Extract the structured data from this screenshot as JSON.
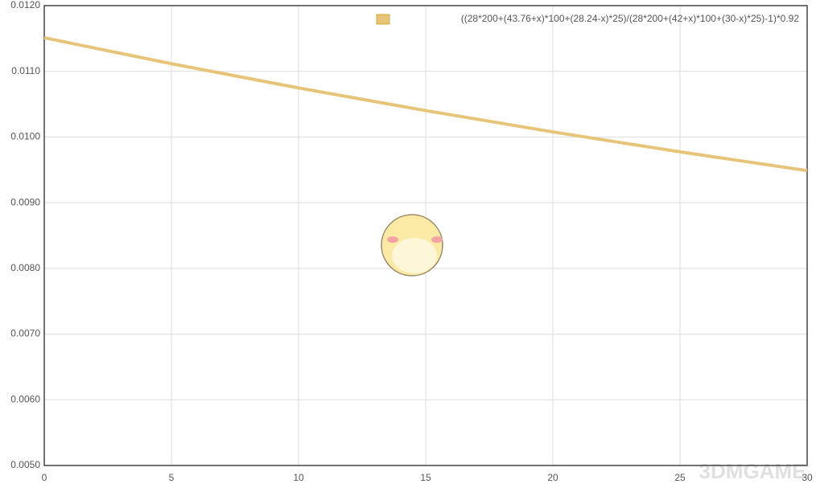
{
  "chart_data": {
    "type": "line",
    "x": [
      0,
      5,
      10,
      15,
      20,
      25,
      30
    ],
    "series": [
      {
        "name": "((28*200+(43.76+x)*100+(28.24-x)*25)/(28*200+(42+x)*100+(30-x)*25)-1)*0.92",
        "color": "#e6c57a",
        "values": [
          0.011511,
          0.011116,
          0.010747,
          0.010402,
          0.010078,
          0.009774,
          0.009488
        ]
      }
    ],
    "xlim": [
      0,
      30
    ],
    "xticks": [
      0,
      5,
      10,
      15,
      20,
      25,
      30
    ],
    "ylim": [
      0.005,
      0.012
    ],
    "yticks": [
      {
        "value": 0.005,
        "label": "0.0050"
      },
      {
        "value": 0.006,
        "label": "0.0060"
      },
      {
        "value": 0.007,
        "label": "0.0070"
      },
      {
        "value": 0.008,
        "label": "0.0080"
      },
      {
        "value": 0.009,
        "label": "0.0090"
      },
      {
        "value": 0.01,
        "label": "0.0100"
      },
      {
        "value": 0.011,
        "label": "0.0110"
      },
      {
        "value": 0.012,
        "label": "0.0120"
      }
    ],
    "grid": true,
    "legend": "top-right"
  },
  "watermark": "3DMGAME"
}
